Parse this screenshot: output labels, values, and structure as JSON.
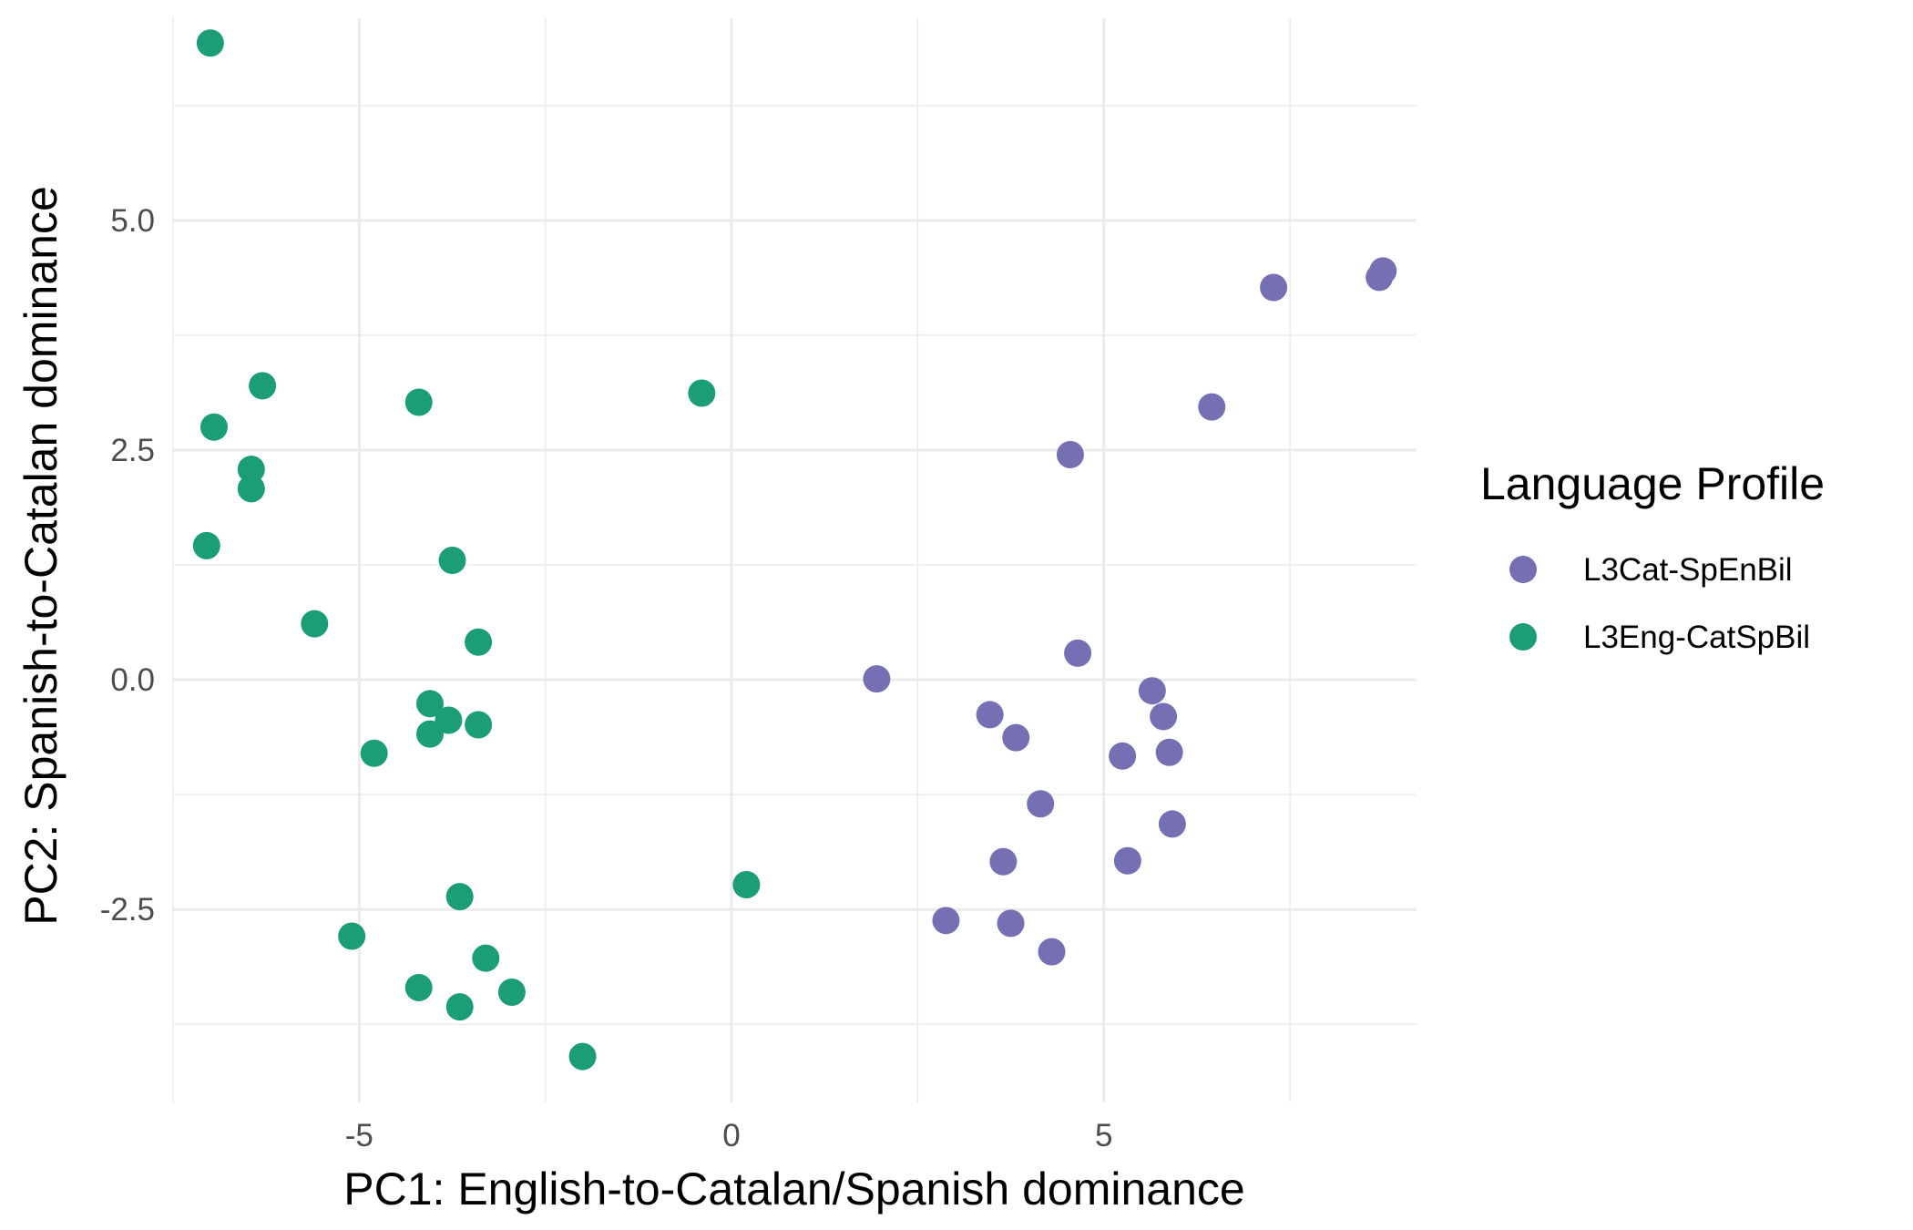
{
  "chart_data": {
    "type": "scatter",
    "xlabel": "PC1: English-to-Catalan/Spanish dominance",
    "ylabel": "PC2: Spanish-to-Catalan dominance",
    "xlim": [
      -7.5,
      9.2
    ],
    "ylim": [
      -4.6,
      7.2
    ],
    "x_ticks": [
      -5,
      0,
      5
    ],
    "x_tick_labels": [
      "-5",
      "0",
      "5"
    ],
    "y_ticks": [
      -2.5,
      0,
      2.5,
      5
    ],
    "y_tick_labels": [
      "-2.5",
      "0.0",
      "2.5",
      "5.0"
    ],
    "grid": true,
    "legend": {
      "title": "Language Profile",
      "position": "right"
    },
    "series": [
      {
        "name": "L3Cat-SpEnBil",
        "color": "#7570b3",
        "points": [
          [
            8.75,
            4.45
          ],
          [
            8.7,
            4.38
          ],
          [
            7.28,
            4.27
          ],
          [
            6.45,
            2.97
          ],
          [
            4.55,
            2.45
          ],
          [
            4.65,
            0.29
          ],
          [
            1.95,
            0.01
          ],
          [
            5.65,
            -0.12
          ],
          [
            5.8,
            -0.4
          ],
          [
            3.47,
            -0.38
          ],
          [
            3.82,
            -0.63
          ],
          [
            5.25,
            -0.83
          ],
          [
            5.88,
            -0.79
          ],
          [
            4.15,
            -1.35
          ],
          [
            5.92,
            -1.57
          ],
          [
            3.65,
            -1.98
          ],
          [
            5.32,
            -1.97
          ],
          [
            2.88,
            -2.62
          ],
          [
            3.75,
            -2.65
          ],
          [
            4.3,
            -2.96
          ]
        ]
      },
      {
        "name": "L3Eng-CatSpBil",
        "color": "#1b9e77",
        "points": [
          [
            -7.0,
            6.93
          ],
          [
            -6.3,
            3.2
          ],
          [
            -6.95,
            2.75
          ],
          [
            -6.45,
            2.29
          ],
          [
            -6.45,
            2.08
          ],
          [
            -4.2,
            3.02
          ],
          [
            -0.4,
            3.12
          ],
          [
            -7.05,
            1.46
          ],
          [
            -3.75,
            1.3
          ],
          [
            -5.6,
            0.61
          ],
          [
            -3.4,
            0.41
          ],
          [
            -4.05,
            -0.26
          ],
          [
            -3.8,
            -0.44
          ],
          [
            -4.05,
            -0.59
          ],
          [
            -3.4,
            -0.49
          ],
          [
            -4.8,
            -0.8
          ],
          [
            0.2,
            -2.23
          ],
          [
            -3.65,
            -2.36
          ],
          [
            -5.1,
            -2.79
          ],
          [
            -3.3,
            -3.03
          ],
          [
            -4.2,
            -3.35
          ],
          [
            -3.65,
            -3.56
          ],
          [
            -2.95,
            -3.4
          ],
          [
            -2.0,
            -4.1
          ]
        ]
      }
    ]
  }
}
